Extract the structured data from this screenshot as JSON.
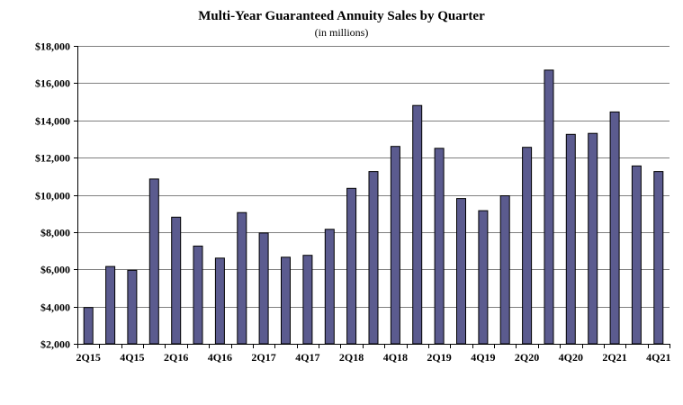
{
  "chart_data": {
    "type": "bar",
    "title": "Multi-Year Guaranteed Annuity Sales by Quarter",
    "subtitle": "(in millions)",
    "xlabel": "",
    "ylabel": "",
    "ylim": [
      2000,
      18000
    ],
    "yticks": [
      2000,
      4000,
      6000,
      8000,
      10000,
      12000,
      14000,
      16000,
      18000
    ],
    "ytick_labels": [
      "$2,000",
      "$4,000",
      "$6,000",
      "$8,000",
      "$10,000",
      "$12,000",
      "$14,000",
      "$16,000",
      "$18,000"
    ],
    "grid": true,
    "bar_color": "#5b5b8f",
    "categories": [
      "2Q15",
      "3Q15",
      "4Q15",
      "1Q16",
      "2Q16",
      "3Q16",
      "4Q16",
      "1Q17",
      "2Q17",
      "3Q17",
      "4Q17",
      "1Q18",
      "2Q18",
      "3Q18",
      "4Q18",
      "1Q19",
      "2Q19",
      "3Q19",
      "4Q19",
      "1Q20",
      "2Q20",
      "3Q20",
      "4Q20",
      "1Q21",
      "2Q21",
      "3Q21",
      "4Q21"
    ],
    "values": [
      3950,
      6150,
      5950,
      10850,
      8800,
      7250,
      6600,
      9050,
      7950,
      6650,
      6750,
      8150,
      10350,
      11250,
      12600,
      14800,
      12500,
      9800,
      9150,
      9950,
      12550,
      16700,
      13250,
      13300,
      14450,
      11550,
      11250
    ],
    "tick_labels": [
      {
        "index": 0,
        "label": "2Q15"
      },
      {
        "index": 2,
        "label": "4Q15"
      },
      {
        "index": 4,
        "label": "2Q16"
      },
      {
        "index": 6,
        "label": "4Q16"
      },
      {
        "index": 8,
        "label": "2Q17"
      },
      {
        "index": 10,
        "label": "4Q17"
      },
      {
        "index": 12,
        "label": "2Q18"
      },
      {
        "index": 14,
        "label": "4Q18"
      },
      {
        "index": 16,
        "label": "2Q19"
      },
      {
        "index": 18,
        "label": "4Q19"
      },
      {
        "index": 20,
        "label": "2Q20"
      },
      {
        "index": 22,
        "label": "4Q20"
      },
      {
        "index": 24,
        "label": "2Q21"
      },
      {
        "index": 26,
        "label": "4Q21"
      }
    ]
  }
}
